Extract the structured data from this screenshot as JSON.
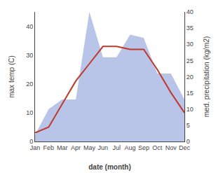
{
  "chart_data": {
    "type": "line",
    "xlabel": "date (month)",
    "ylabel": "max temp (C)",
    "y2label": "med. precipitation (kg/m2)",
    "categories": [
      "Jan",
      "Feb",
      "Mar",
      "Apr",
      "May",
      "Jun",
      "Jul",
      "Aug",
      "Sep",
      "Oct",
      "Nov",
      "Dec"
    ],
    "series": [
      {
        "type": "area",
        "axis": "y2",
        "color": "#b8c4e8",
        "values": [
          2,
          10,
          13,
          13,
          40,
          26,
          26,
          33,
          32,
          21,
          21,
          13
        ]
      },
      {
        "type": "line",
        "color": "#c0392b",
        "values": [
          3,
          5,
          13,
          21,
          27,
          33,
          33,
          32,
          32,
          25,
          17,
          10
        ]
      }
    ],
    "ylim": [
      0,
      45
    ],
    "yticks": [
      0,
      10,
      20,
      30,
      40
    ],
    "y2lim": [
      0,
      40
    ],
    "y2ticks": [
      0,
      5,
      10,
      15,
      20,
      25,
      30,
      35,
      40
    ],
    "grid": false
  }
}
